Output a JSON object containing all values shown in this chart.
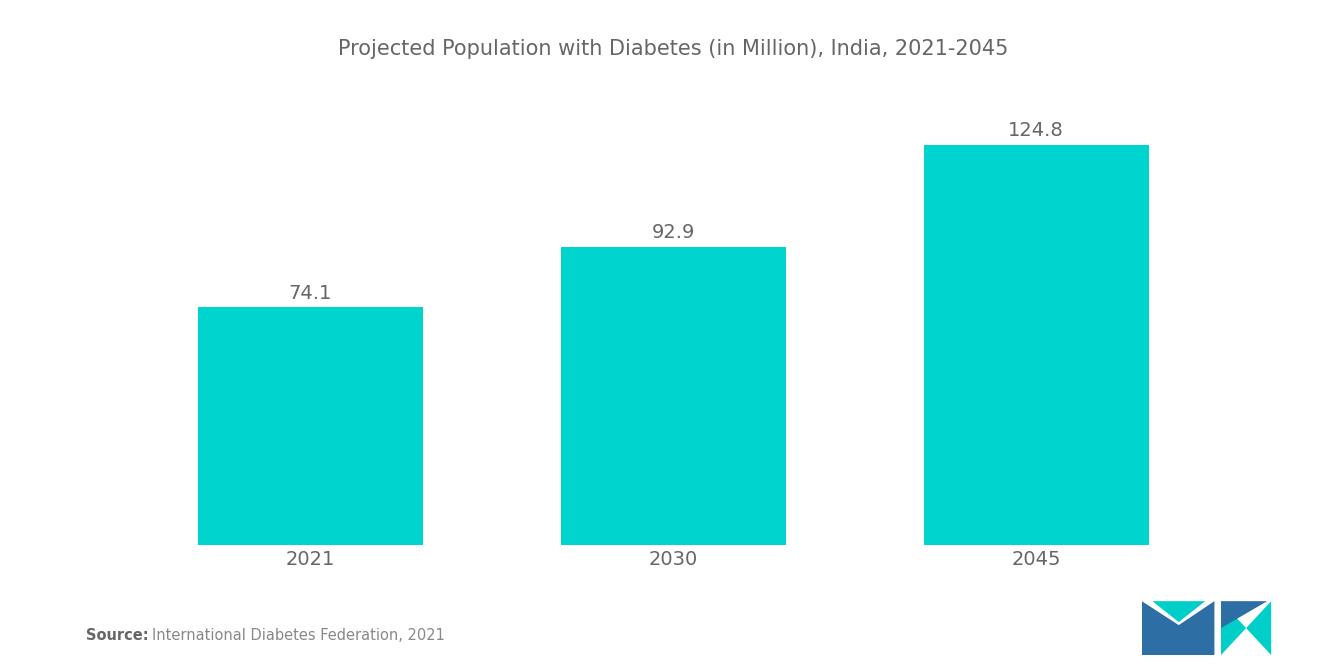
{
  "title": "Projected Population with Diabetes (in Million), India, 2021-2045",
  "categories": [
    "2021",
    "2030",
    "2045"
  ],
  "values": [
    74.1,
    92.9,
    124.8
  ],
  "bar_color": "#00D4CF",
  "background_color": "#ffffff",
  "title_fontsize": 15,
  "label_fontsize": 14,
  "tick_fontsize": 14,
  "source_bold": "Source:",
  "source_normal": "  International Diabetes Federation, 2021",
  "ylim": [
    0,
    145
  ],
  "bar_width": 0.62
}
